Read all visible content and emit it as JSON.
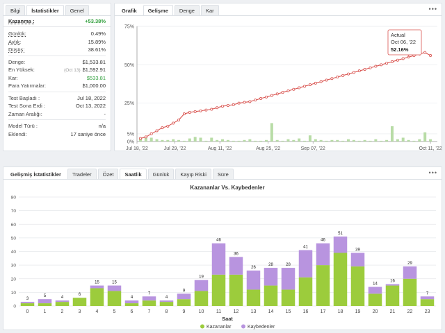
{
  "stats_panel": {
    "tabs": [
      "Bilgi",
      "İstatistikler",
      "Genel"
    ],
    "gain": {
      "label": "Kazanma :",
      "value": "+53.38%"
    },
    "rows_a": [
      {
        "label": "Günlük:",
        "value": "0.49%"
      },
      {
        "label": "Aylık:",
        "value": "15.89%"
      },
      {
        "label": "Düşüş:",
        "value": "38.61%"
      }
    ],
    "rows_b": [
      {
        "label": "Denge:",
        "value": "$1,533.81",
        "note": ""
      },
      {
        "label": "En Yüksek:",
        "value": "$1,592.91",
        "note": "(Oct 13)"
      },
      {
        "label": "Kar:",
        "value": "$533.81",
        "note": ""
      },
      {
        "label": "Para Yatırmalar:",
        "value": "$1,000.00",
        "note": ""
      }
    ],
    "rows_c": [
      {
        "label": "Test Başladı :",
        "value": "Jul 18, 2022"
      },
      {
        "label": "Test Sona Erdi :",
        "value": "Oct 13, 2022"
      },
      {
        "label": "Zaman Aralığı:",
        "value": "-"
      }
    ],
    "rows_d": [
      {
        "label": "Model Türü :",
        "value": "n/a"
      },
      {
        "label": "Eklendi:",
        "value": "17 saniye önce"
      }
    ]
  },
  "growth_panel": {
    "tabs": [
      "Grafik",
      "Gelişme",
      "Denge",
      "Kar"
    ],
    "menu": "•••",
    "tooltip": {
      "title": "Actual",
      "date": "Oct 06, '22",
      "value": "52.16%"
    }
  },
  "advanced_panel": {
    "tabs": [
      "Gelişmiş İstatistikler",
      "Tradeler",
      "Özet",
      "Saatlik",
      "Günlük",
      "Kayıp Riski",
      "Süre"
    ],
    "menu": "•••"
  },
  "chart_data": [
    {
      "type": "line",
      "title": "",
      "xlabel": "",
      "ylabel": "",
      "ylim": [
        0,
        75
      ],
      "yticks": [
        "0%",
        "25%",
        "50%",
        "75%"
      ],
      "yticks_values": [
        0,
        25,
        50,
        75
      ],
      "ytick_minor": [
        "0%",
        "5%",
        "25%",
        "50%",
        "75%"
      ],
      "xticks": [
        "Jul 18, '22",
        "Jul 29, '22",
        "Aug 11, '22",
        "Aug 25, '22",
        "Sep 07, '22",
        "Oct 11, '22"
      ],
      "xticks_pos": [
        0,
        11,
        24,
        38,
        51,
        85
      ],
      "x_range": [
        0,
        87
      ],
      "series": [
        {
          "values": [
            2,
            3,
            5,
            7,
            9,
            10,
            12,
            14,
            18,
            19,
            19.5,
            20,
            20.5,
            21,
            22,
            23,
            23.5,
            24,
            25,
            25.5,
            26,
            27,
            28,
            29,
            30,
            31,
            32,
            33,
            34,
            35,
            36,
            37,
            38,
            39,
            40,
            41,
            42,
            43,
            44,
            45,
            46,
            47,
            48,
            49,
            50,
            51,
            52,
            53,
            54,
            55,
            56,
            57,
            58,
            56
          ]
        }
      ],
      "bars": [
        2,
        3.5,
        2.5,
        1.5,
        1,
        1,
        1.5,
        1,
        0.5,
        2,
        3,
        2.5,
        0.5,
        2.5,
        1,
        1.5,
        1,
        0.5,
        0.5,
        1,
        1.5,
        0.5,
        0.5,
        1,
        12,
        1,
        0.5,
        1.5,
        1,
        2,
        0.5,
        4,
        1.5,
        1,
        0.5,
        1,
        1,
        0.5,
        1.5,
        1,
        0.5,
        1,
        0.5,
        1.5,
        0.5,
        1,
        10,
        1.5,
        2.5,
        1,
        0.5,
        1.5,
        6,
        1.5
      ]
    },
    {
      "type": "bar",
      "title": "Kazananlar Vs. Kaybedenler",
      "xlabel": "Saat",
      "ylabel": "",
      "ylim": [
        0,
        80
      ],
      "yticks": [
        0,
        10,
        20,
        30,
        40,
        50,
        60,
        70,
        80
      ],
      "categories": [
        "0",
        "1",
        "2",
        "3",
        "4",
        "5",
        "6",
        "7",
        "8",
        "9",
        "10",
        "11",
        "12",
        "13",
        "14",
        "15",
        "16",
        "17",
        "18",
        "19",
        "20",
        "21",
        "22",
        "23"
      ],
      "totals": [
        3,
        5,
        4,
        6,
        15,
        15,
        4,
        7,
        4,
        9,
        19,
        46,
        36,
        26,
        28,
        28,
        41,
        46,
        51,
        39,
        14,
        16,
        29,
        7
      ],
      "series": [
        {
          "name": "Kazananlar",
          "color": "#9ccc3c",
          "values": [
            2,
            2,
            3,
            6,
            13,
            11,
            2,
            4,
            3,
            5,
            11,
            23,
            23,
            12,
            15,
            12,
            21,
            30,
            39,
            29,
            9,
            15,
            20,
            5
          ]
        },
        {
          "name": "Kaybedenler",
          "color": "#b894df",
          "values": [
            1,
            3,
            1,
            0,
            2,
            4,
            2,
            3,
            1,
            4,
            8,
            23,
            13,
            14,
            13,
            16,
            20,
            16,
            12,
            10,
            5,
            1,
            9,
            2
          ]
        }
      ],
      "legend": "bottom-center"
    }
  ]
}
